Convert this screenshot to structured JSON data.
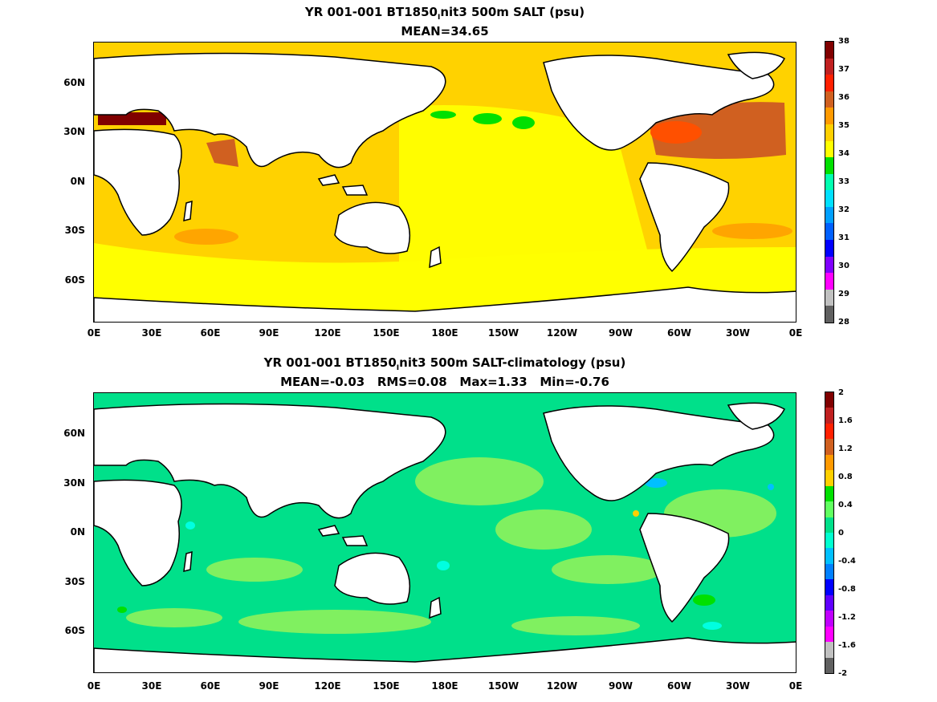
{
  "top": {
    "title_main": "YR 001-001 BT1850",
    "title_sub": "I",
    "title_tail": "nit3 500m SALT (psu)",
    "subtitle": "MEAN=34.65",
    "colorbar_labels": [
      "38",
      "37",
      "36",
      "35",
      "34",
      "33",
      "32",
      "31",
      "30",
      "29",
      "28"
    ],
    "colors": [
      "#800000",
      "#c02020",
      "#ff2000",
      "#d06020",
      "#ff9a00",
      "#ffd000",
      "#ffff00",
      "#00e000",
      "#00ffb0",
      "#00e0ff",
      "#00a0ff",
      "#0060ff",
      "#0000ff",
      "#8000ff",
      "#ff00ff",
      "#c0c0c0",
      "#606060"
    ]
  },
  "bottom": {
    "title_main": "YR 001-001 BT1850",
    "title_sub": "I",
    "title_tail": "nit3 500m SALT-climatology (psu)",
    "subtitle": "MEAN=-0.03   RMS=0.08   Max=1.33   Min=-0.76",
    "colorbar_labels": [
      "2",
      "1.6",
      "1.2",
      "0.8",
      "0.4",
      "0",
      "-0.4",
      "-0.8",
      "-1.2",
      "-1.6",
      "-2"
    ],
    "colors": [
      "#800000",
      "#c02020",
      "#ff2000",
      "#d06020",
      "#ff9a00",
      "#ffd000",
      "#00e000",
      "#60ff60",
      "#00e08a",
      "#00ffd0",
      "#00c0ff",
      "#0080ff",
      "#0000ff",
      "#6000ff",
      "#c000ff",
      "#ff00ff",
      "#c0c0c0",
      "#606060"
    ]
  },
  "axes": {
    "lat_labels": [
      "60N",
      "30N",
      "0N",
      "30S",
      "60S"
    ],
    "lon_labels": [
      "0E",
      "30E",
      "60E",
      "90E",
      "120E",
      "150E",
      "180E",
      "150W",
      "120W",
      "90W",
      "60W",
      "30W",
      "0E"
    ]
  }
}
